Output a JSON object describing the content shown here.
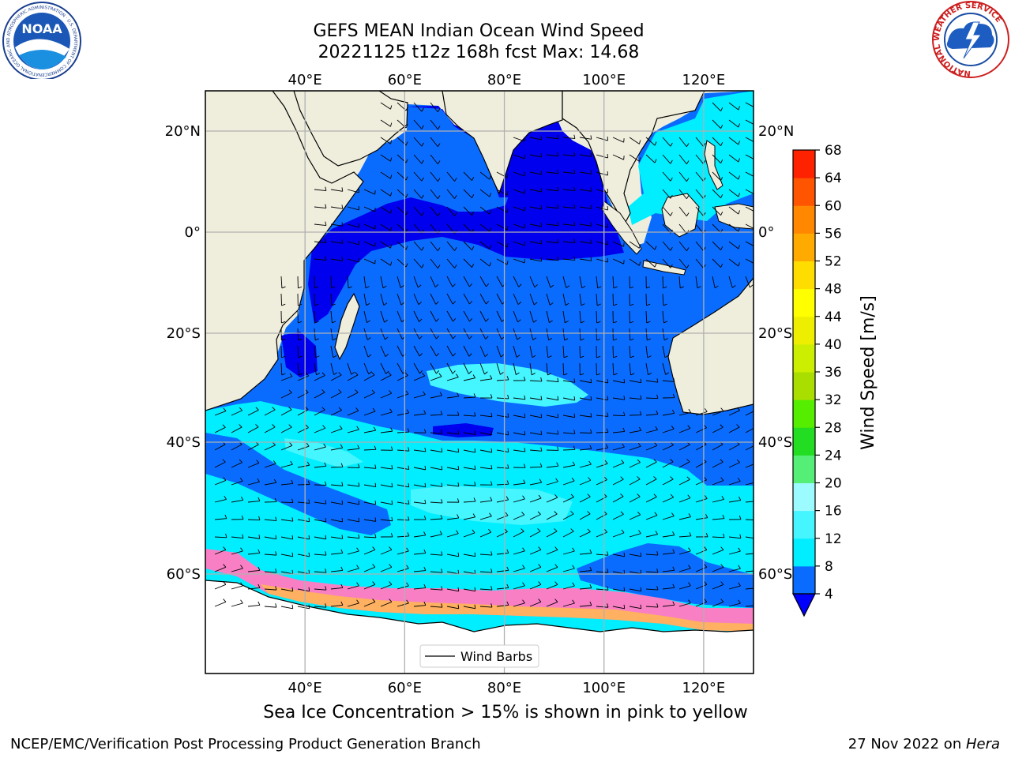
{
  "title": {
    "line1": "GEFS MEAN Indian Ocean Wind Speed",
    "line2": "20221125 t12z 168h fcst   Max: 14.68"
  },
  "map": {
    "lon_range": [
      20,
      130
    ],
    "lat_range": [
      -75,
      27
    ],
    "lon_ticks": [
      {
        "value": 40,
        "label": "40°E"
      },
      {
        "value": 60,
        "label": "60°E"
      },
      {
        "value": 80,
        "label": "80°E"
      },
      {
        "value": 100,
        "label": "100°E"
      },
      {
        "value": 120,
        "label": "120°E"
      }
    ],
    "lat_ticks": [
      {
        "value": 20,
        "label": "20°N"
      },
      {
        "value": 0,
        "label": "0°"
      },
      {
        "value": -20,
        "label": "20°S"
      },
      {
        "value": -40,
        "label": "40°S"
      },
      {
        "value": -60,
        "label": "60°S"
      }
    ],
    "land_color": "#efeedd",
    "ocean_base_color": "#0073ff",
    "legend_label": "Wind Barbs"
  },
  "colorbar": {
    "label": "Wind Speed [m/s]",
    "levels": [
      4,
      8,
      12,
      16,
      20,
      24,
      28,
      32,
      36,
      40,
      44,
      48,
      52,
      56,
      60,
      64,
      68
    ],
    "colors": [
      "#0a6cff",
      "#00eeff",
      "#45f5ff",
      "#9cfbff",
      "#55ee77",
      "#22dd22",
      "#55ee00",
      "#aadd00",
      "#ccee00",
      "#eeee00",
      "#ffff00",
      "#ffdd00",
      "#ffaa00",
      "#ff8800",
      "#ff5500",
      "#ff2200"
    ],
    "under_color": "#0000ff"
  },
  "subtitle": "Sea Ice Concentration > 15% is shown in pink to yellow",
  "footer": {
    "left": "NCEP/EMC/Verification Post Processing Product Generation Branch",
    "right_date": "27 Nov 2022 on ",
    "right_host": "Hera"
  },
  "logos": {
    "noaa_text": "NOAA",
    "noaa_ring_text": "NATIONAL OCEANIC AND ATMOSPHERIC ADMINISTRATION · U.S. DEPARTMENT OF COMMERCE",
    "nws_ring_text": "NATIONAL WEATHER SERVICE"
  }
}
